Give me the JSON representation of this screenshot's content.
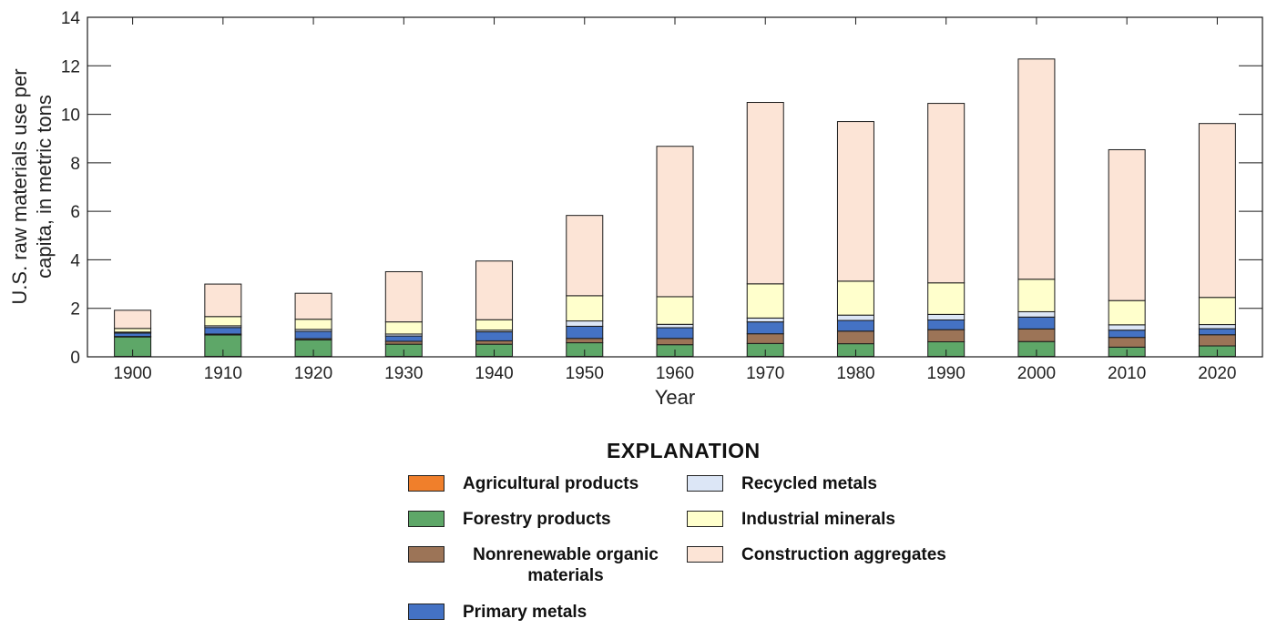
{
  "chart_data": {
    "type": "bar",
    "stacked": true,
    "xlabel": "Year",
    "ylabel": "U.S. raw materials use per capita, in metric tons",
    "ylim": [
      0,
      14
    ],
    "yticks": [
      0,
      2,
      4,
      6,
      8,
      10,
      12,
      14
    ],
    "categories": [
      "1900",
      "1910",
      "1920",
      "1930",
      "1940",
      "1950",
      "1960",
      "1970",
      "1980",
      "1990",
      "2000",
      "2010",
      "2020"
    ],
    "series": [
      {
        "name": "Agricultural products",
        "color": "#f07f2b",
        "values": [
          0.02,
          0.02,
          0.02,
          0.02,
          0.02,
          0.02,
          0.02,
          0.02,
          0.02,
          0.02,
          0.02,
          0.02,
          0.02
        ]
      },
      {
        "name": "Forestry products",
        "color": "#5ea768",
        "values": [
          0.8,
          0.88,
          0.68,
          0.5,
          0.5,
          0.56,
          0.48,
          0.53,
          0.52,
          0.6,
          0.61,
          0.38,
          0.43
        ]
      },
      {
        "name": "Nonrenewable organic materials",
        "color": "#9c7457",
        "values": [
          0.02,
          0.04,
          0.05,
          0.12,
          0.14,
          0.18,
          0.26,
          0.4,
          0.52,
          0.5,
          0.52,
          0.4,
          0.46
        ]
      },
      {
        "name": "Primary metals",
        "color": "#4472c4",
        "values": [
          0.14,
          0.27,
          0.3,
          0.22,
          0.37,
          0.5,
          0.44,
          0.49,
          0.44,
          0.4,
          0.49,
          0.3,
          0.25
        ]
      },
      {
        "name": "Recycled metals",
        "color": "#dce6f6",
        "values": [
          0.04,
          0.07,
          0.08,
          0.08,
          0.07,
          0.22,
          0.14,
          0.16,
          0.22,
          0.23,
          0.22,
          0.22,
          0.17
        ]
      },
      {
        "name": "Industrial minerals",
        "color": "#ffffcc",
        "values": [
          0.15,
          0.38,
          0.42,
          0.5,
          0.43,
          1.04,
          1.14,
          1.41,
          1.4,
          1.3,
          1.34,
          1.0,
          1.12
        ]
      },
      {
        "name": "Construction aggregates",
        "color": "#fce4d6",
        "values": [
          0.75,
          1.34,
          1.07,
          2.07,
          2.42,
          3.31,
          6.2,
          7.48,
          6.58,
          7.4,
          9.08,
          6.22,
          7.17
        ]
      }
    ],
    "legend_title": "EXPLANATION",
    "legend_placement": "bottom-center",
    "grid": false
  }
}
